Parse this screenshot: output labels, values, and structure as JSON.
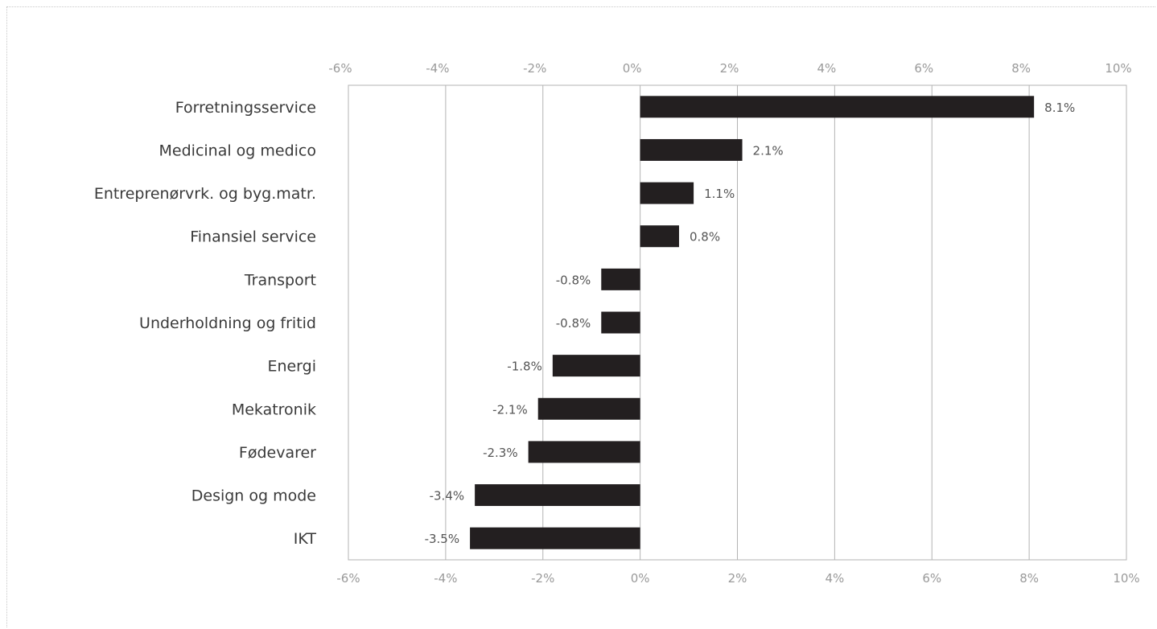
{
  "chart_data": {
    "type": "bar",
    "orientation": "horizontal",
    "categories": [
      "Forretningsservice",
      "Medicinal og medico",
      "Entreprenørvrk. og byg.matr.",
      "Finansiel service",
      "Transport",
      "Underholdning og fritid",
      "Energi",
      "Mekatronik",
      "Fødevarer",
      "Design og mode",
      "IKT"
    ],
    "values": [
      8.1,
      2.1,
      1.1,
      0.8,
      -0.8,
      -0.8,
      -1.8,
      -2.1,
      -2.3,
      -3.4,
      -3.5
    ],
    "data_labels": [
      "8.1%",
      "2.1%",
      "1.1%",
      "0.8%",
      "-0.8%",
      "-0.8%",
      "-1.8%",
      "-2.1%",
      "-2.3%",
      "-3.4%",
      "-3.5%"
    ],
    "xlim": [
      -6,
      10
    ],
    "xticks": [
      -6,
      -4,
      -2,
      0,
      2,
      4,
      6,
      8,
      10
    ],
    "xtick_labels": [
      "-6%",
      "-4%",
      "-2%",
      "0%",
      "2%",
      "4%",
      "6%",
      "8%",
      "10%"
    ],
    "xaxis_top": true,
    "xaxis_bottom": true,
    "grid": true,
    "title": "",
    "xlabel": "",
    "ylabel": "",
    "colors": {
      "bar": "#231f20",
      "grid": "#b3b3b3",
      "tick": "#9a9a9a",
      "category": "#3a3a3a",
      "label": "#555555"
    }
  }
}
